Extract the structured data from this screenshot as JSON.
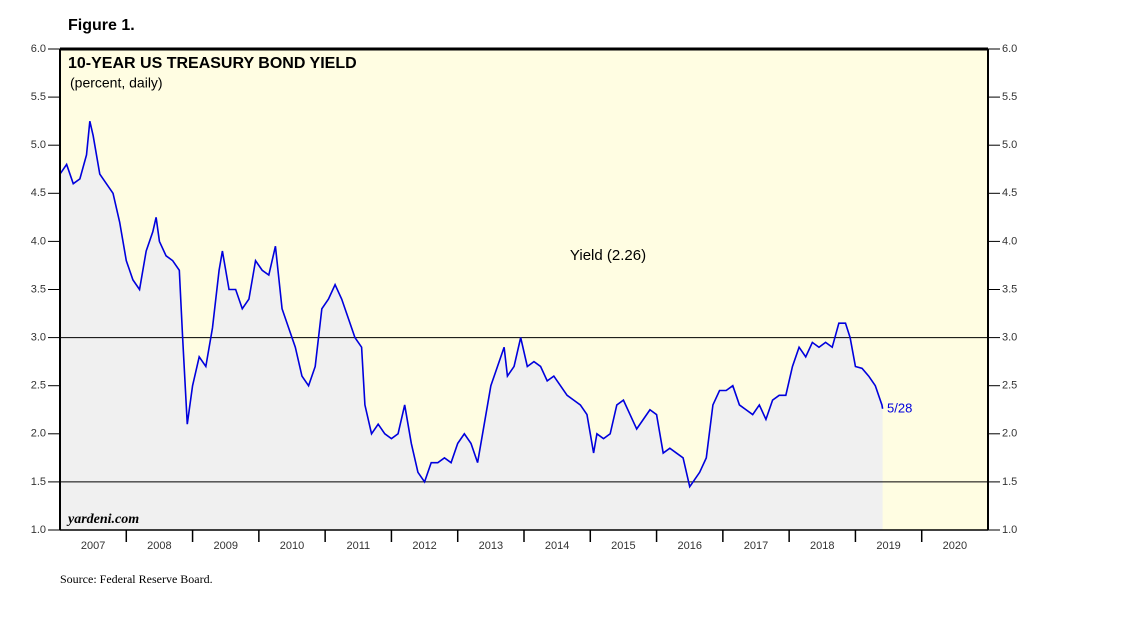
{
  "chart_data": {
    "type": "line",
    "figure_label": "Figure 1.",
    "title": "10-YEAR US TREASURY BOND YIELD",
    "subtitle": "(percent, daily)",
    "annotations": [
      "Yield (2.26)",
      "5/28"
    ],
    "watermark": "yardeni.com",
    "source": "Source: Federal Reserve Board.",
    "xlim": [
      2007,
      2021
    ],
    "xticks": [
      {
        "value": 2007,
        "label": "2007"
      },
      {
        "value": 2008,
        "label": "2008"
      },
      {
        "value": 2009,
        "label": "2009"
      },
      {
        "value": 2010,
        "label": "2010"
      },
      {
        "value": 2011,
        "label": "2011"
      },
      {
        "value": 2012,
        "label": "2012"
      },
      {
        "value": 2013,
        "label": "2013"
      },
      {
        "value": 2014,
        "label": "2014"
      },
      {
        "value": 2015,
        "label": "2015"
      },
      {
        "value": 2016,
        "label": "2016"
      },
      {
        "value": 2017,
        "label": "2017"
      },
      {
        "value": 2018,
        "label": "2018"
      },
      {
        "value": 2019,
        "label": "2019"
      },
      {
        "value": 2020,
        "label": "2020"
      }
    ],
    "ylim": [
      1.0,
      6.0
    ],
    "yticks": [
      {
        "value": 1,
        "label": "1.0"
      },
      1.5,
      {
        "value": 2,
        "label": "2.0"
      },
      2.5,
      {
        "value": 3,
        "label": "3.0"
      },
      3.5,
      {
        "value": 4,
        "label": "4.0"
      },
      4.5,
      {
        "value": 5,
        "label": "5.0"
      },
      5.5,
      {
        "value": 6,
        "label": "6.0"
      }
    ],
    "hlines": [
      3.0,
      1.5
    ],
    "series": [
      {
        "name": "Yield",
        "color": "#0000dd",
        "x": [
          2007.0,
          2007.1,
          2007.2,
          2007.3,
          2007.4,
          2007.45,
          2007.5,
          2007.6,
          2007.7,
          2007.8,
          2007.9,
          2008.0,
          2008.1,
          2008.2,
          2008.3,
          2008.4,
          2008.45,
          2008.5,
          2008.6,
          2008.7,
          2008.8,
          2008.85,
          2008.92,
          2009.0,
          2009.1,
          2009.2,
          2009.3,
          2009.4,
          2009.45,
          2009.55,
          2009.65,
          2009.75,
          2009.85,
          2009.95,
          2010.05,
          2010.15,
          2010.25,
          2010.35,
          2010.45,
          2010.55,
          2010.65,
          2010.75,
          2010.85,
          2010.95,
          2011.05,
          2011.15,
          2011.25,
          2011.35,
          2011.45,
          2011.55,
          2011.6,
          2011.7,
          2011.8,
          2011.9,
          2012.0,
          2012.1,
          2012.2,
          2012.3,
          2012.4,
          2012.5,
          2012.6,
          2012.7,
          2012.8,
          2012.9,
          2013.0,
          2013.1,
          2013.2,
          2013.3,
          2013.4,
          2013.5,
          2013.6,
          2013.7,
          2013.75,
          2013.85,
          2013.95,
          2014.05,
          2014.15,
          2014.25,
          2014.35,
          2014.45,
          2014.55,
          2014.65,
          2014.75,
          2014.85,
          2014.95,
          2015.05,
          2015.1,
          2015.2,
          2015.3,
          2015.4,
          2015.5,
          2015.6,
          2015.7,
          2015.8,
          2015.9,
          2016.0,
          2016.1,
          2016.2,
          2016.3,
          2016.4,
          2016.5,
          2016.55,
          2016.65,
          2016.75,
          2016.85,
          2016.95,
          2017.05,
          2017.15,
          2017.25,
          2017.35,
          2017.45,
          2017.55,
          2017.65,
          2017.75,
          2017.85,
          2017.95,
          2018.05,
          2018.15,
          2018.25,
          2018.35,
          2018.45,
          2018.55,
          2018.65,
          2018.75,
          2018.85,
          2018.92,
          2019.0,
          2019.1,
          2019.2,
          2019.3,
          2019.4,
          2019.41
        ],
        "values": [
          4.7,
          4.8,
          4.6,
          4.65,
          4.9,
          5.25,
          5.1,
          4.7,
          4.6,
          4.5,
          4.2,
          3.8,
          3.6,
          3.5,
          3.9,
          4.1,
          4.25,
          4.0,
          3.85,
          3.8,
          3.7,
          3.0,
          2.1,
          2.5,
          2.8,
          2.7,
          3.1,
          3.7,
          3.9,
          3.5,
          3.5,
          3.3,
          3.4,
          3.8,
          3.7,
          3.65,
          3.95,
          3.3,
          3.1,
          2.9,
          2.6,
          2.5,
          2.7,
          3.3,
          3.4,
          3.55,
          3.4,
          3.2,
          3.0,
          2.9,
          2.3,
          2.0,
          2.1,
          2.0,
          1.95,
          2.0,
          2.3,
          1.9,
          1.6,
          1.5,
          1.7,
          1.7,
          1.75,
          1.7,
          1.9,
          2.0,
          1.9,
          1.7,
          2.1,
          2.5,
          2.7,
          2.9,
          2.6,
          2.7,
          3.0,
          2.7,
          2.75,
          2.7,
          2.55,
          2.6,
          2.5,
          2.4,
          2.35,
          2.3,
          2.2,
          1.8,
          2.0,
          1.95,
          2.0,
          2.3,
          2.35,
          2.2,
          2.05,
          2.15,
          2.25,
          2.2,
          1.8,
          1.85,
          1.8,
          1.75,
          1.45,
          1.5,
          1.6,
          1.75,
          2.3,
          2.45,
          2.45,
          2.5,
          2.3,
          2.25,
          2.2,
          2.3,
          2.15,
          2.35,
          2.4,
          2.4,
          2.7,
          2.9,
          2.8,
          2.95,
          2.9,
          2.95,
          2.9,
          3.15,
          3.15,
          3.0,
          2.7,
          2.68,
          2.6,
          2.5,
          2.3,
          2.26
        ]
      }
    ]
  }
}
